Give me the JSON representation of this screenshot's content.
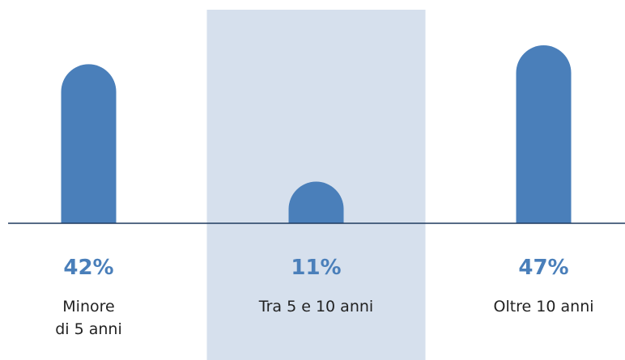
{
  "chart_data": {
    "type": "bar",
    "categories": [
      "Minore\ndi 5 anni",
      "Tra 5 e 10 anni",
      "Oltre 10 anni"
    ],
    "values": [
      42,
      11,
      47
    ],
    "value_labels": [
      "42%",
      "11%",
      "47%"
    ],
    "color": "#4a7fba",
    "highlight": 1,
    "highlight_color": "#d6e0ed"
  }
}
